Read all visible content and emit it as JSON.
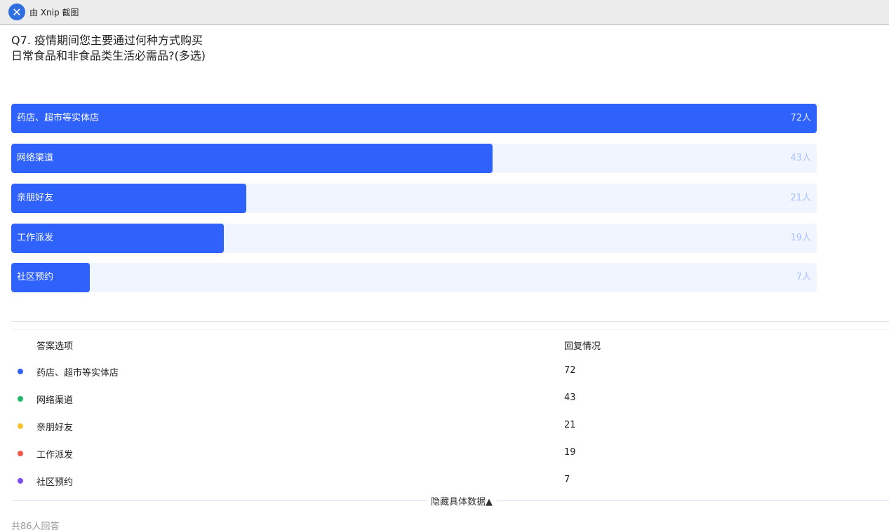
{
  "window": {
    "title": "由 Xnip 截图",
    "logo_icon": "xnip-icon"
  },
  "question": {
    "title": "Q7. 疫情期间您主要通过何种方式购买日常食品和非食品类生活必需品?(多选)"
  },
  "chart_data": {
    "type": "bar",
    "orientation": "horizontal",
    "categories": [
      "药店、超市等实体店",
      "网络渠道",
      "亲朋好友",
      "工作派发",
      "社区预约"
    ],
    "values": [
      72,
      43,
      21,
      19,
      7
    ],
    "value_labels": [
      "72人",
      "43人",
      "21人",
      "19人",
      "7人"
    ],
    "bar_color": "#2f62fb",
    "track_color": "#f0f5ff"
  },
  "table": {
    "headers": [
      "答案选项",
      "回复情况"
    ],
    "rows": [
      {
        "label": "药店、超市等实体店",
        "value": "72",
        "color": "#2f62fb"
      },
      {
        "label": "网络渠道",
        "value": "43",
        "color": "#1fb968"
      },
      {
        "label": "亲朋好友",
        "value": "21",
        "color": "#fbc02d"
      },
      {
        "label": "工作派发",
        "value": "19",
        "color": "#f2574a"
      },
      {
        "label": "社区预约",
        "value": "7",
        "color": "#7a4ef0"
      }
    ]
  },
  "toggle_label": "隐藏具体数据▲",
  "total": "共86人回答"
}
